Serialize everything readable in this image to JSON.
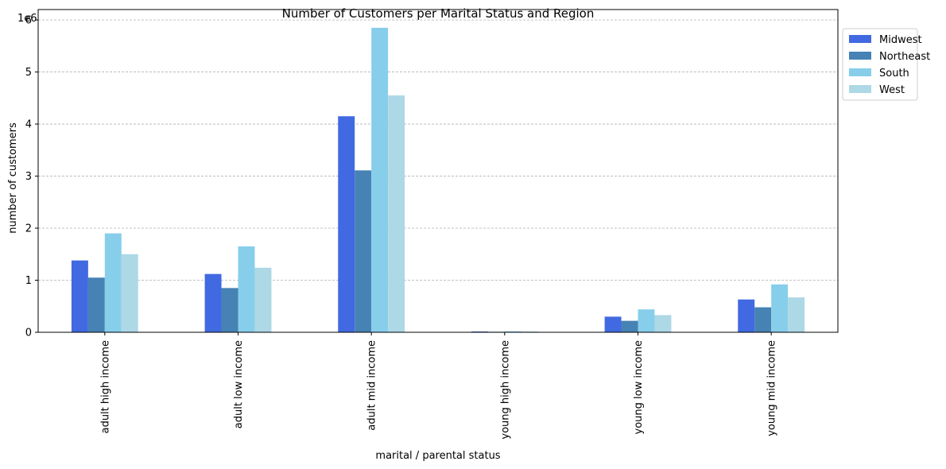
{
  "chart_data": {
    "type": "bar",
    "title": "Number of Customers per Marital Status and Region",
    "xlabel": "marital / parental status",
    "ylabel": "number of customers",
    "y_offset_label": "1e6",
    "y_scale": 1000000,
    "ylim": [
      0,
      6200000
    ],
    "yticks": [
      0,
      1000000,
      2000000,
      3000000,
      4000000,
      5000000,
      6000000
    ],
    "ytick_labels": [
      "0",
      "1",
      "2",
      "3",
      "4",
      "5",
      "6"
    ],
    "grid": "horizontal, dashed",
    "legend_position": "outside-top-right",
    "categories": [
      "adult high income",
      "adult low income",
      "adult mid income",
      "young high income",
      "young low income",
      "young mid income"
    ],
    "series": [
      {
        "name": "Midwest",
        "color": "#4169e1",
        "values": [
          1380000,
          1120000,
          4150000,
          15000,
          300000,
          630000
        ]
      },
      {
        "name": "Northeast",
        "color": "#4682b4",
        "values": [
          1050000,
          850000,
          3110000,
          10000,
          220000,
          480000
        ]
      },
      {
        "name": "South",
        "color": "#87ceeb",
        "values": [
          1900000,
          1650000,
          5850000,
          20000,
          440000,
          920000
        ]
      },
      {
        "name": "West",
        "color": "#add8e6",
        "values": [
          1500000,
          1240000,
          4550000,
          15000,
          330000,
          670000
        ]
      }
    ]
  }
}
